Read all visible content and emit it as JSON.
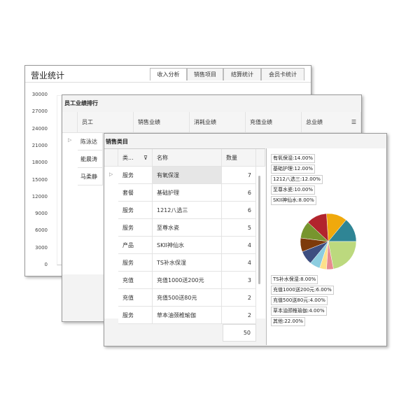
{
  "revenue": {
    "title": "营业统计",
    "tabs": [
      "收入分析",
      "销售项目",
      "结算统计",
      "会员卡统计"
    ],
    "active_tab": 0,
    "y_ticks": [
      "30000",
      "27000",
      "24000",
      "21000",
      "18000",
      "15000",
      "12000",
      "9000",
      "6000",
      "3000",
      "0"
    ]
  },
  "staff": {
    "title": "员工业绩排行",
    "columns": [
      "员工",
      "销售业绩",
      "消耗业绩",
      "充值业绩",
      "总业绩"
    ],
    "rows": [
      "陈泳达",
      "能晨涛",
      "马柔静"
    ]
  },
  "category": {
    "title": "销售类目",
    "columns": [
      "类...",
      "名称",
      "数量"
    ],
    "rows": [
      [
        "服务",
        "有氧保湿",
        "7"
      ],
      [
        "套餐",
        "基础护理",
        "6"
      ],
      [
        "服务",
        "1212八选三",
        "6"
      ],
      [
        "服务",
        "至尊水瓷",
        "5"
      ],
      [
        "产品",
        "SKII神仙水",
        "4"
      ],
      [
        "服务",
        "TS补水保湿",
        "4"
      ],
      [
        "充值",
        "充值1000送200元",
        "3"
      ],
      [
        "充值",
        "充值500送80元",
        "2"
      ],
      [
        "服务",
        "草本油颈椎瑜伽",
        "2"
      ]
    ],
    "total": "50"
  },
  "chart_data": {
    "type": "pie",
    "slices": [
      {
        "name": "有氧保湿",
        "value": 14,
        "label": "有氧保湿:14.00%",
        "color": "#2f8595"
      },
      {
        "name": "基础护理",
        "value": 12,
        "label": "基础护理:12.00%",
        "color": "#f0a90c"
      },
      {
        "name": "1212八选三",
        "value": 12,
        "label": "1212八选三:12.00%",
        "color": "#b2242d"
      },
      {
        "name": "至尊水瓷",
        "value": 10,
        "label": "至尊水瓷:10.00%",
        "color": "#77952e"
      },
      {
        "name": "SKII神仙水",
        "value": 8,
        "label": "SKII神仙水:8.00%",
        "color": "#7d3a0b"
      },
      {
        "name": "TS补水保湿",
        "value": 8,
        "label": "TS补水保湿:8.00%",
        "color": "#3d4e80"
      },
      {
        "name": "充值1000送200元",
        "value": 6,
        "label": "充值1000送200元:6.00%",
        "color": "#8ccde0"
      },
      {
        "name": "充值500送80元",
        "value": 4,
        "label": "充值500送80元:4.00%",
        "color": "#fde08a"
      },
      {
        "name": "草本油颈椎瑜伽",
        "value": 4,
        "label": "草本油颈椎瑜伽:4.00%",
        "color": "#e88a90"
      },
      {
        "name": "其他",
        "value": 22,
        "label": "其他:22.00%",
        "color": "#bcd97e"
      }
    ]
  }
}
